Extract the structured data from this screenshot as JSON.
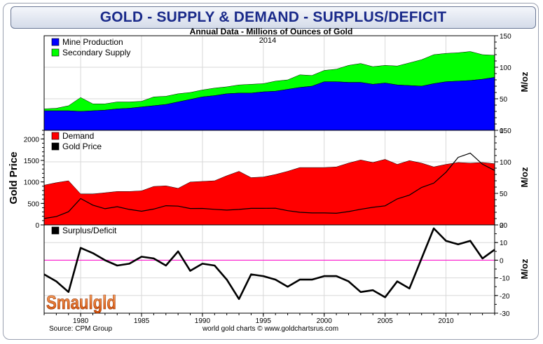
{
  "page": {
    "title": "GOLD - SUPPLY & DEMAND - SURPLUS/DEFICIT",
    "subtitle": "Annual Data - Millions of Ounces of Gold",
    "year_label": "2014",
    "source_left": "Source: CPM Group",
    "source_center": "world gold charts © www.goldchartsrus.com",
    "logo_text": "Smaulgld"
  },
  "chart_data": [
    {
      "type": "area",
      "title": "Annual Data - Millions of Ounces of Gold",
      "stacked": true,
      "x": [
        1977,
        1978,
        1979,
        1980,
        1981,
        1982,
        1983,
        1984,
        1985,
        1986,
        1987,
        1988,
        1989,
        1990,
        1991,
        1992,
        1993,
        1994,
        1995,
        1996,
        1997,
        1998,
        1999,
        2000,
        2001,
        2002,
        2003,
        2004,
        2005,
        2006,
        2007,
        2008,
        2009,
        2010,
        2011,
        2012,
        2013,
        2014
      ],
      "series": [
        {
          "name": "Mine Production",
          "color": "#0000ff",
          "values": [
            31,
            31,
            31,
            30,
            31,
            32,
            34,
            35,
            37,
            39,
            41,
            45,
            49,
            53,
            55,
            58,
            59,
            59,
            61,
            62,
            65,
            68,
            70,
            77,
            77,
            76,
            76,
            73,
            75,
            72,
            71,
            70,
            74,
            77,
            78,
            79,
            81,
            84
          ]
        },
        {
          "name": "Secondary Supply",
          "color": "#00ff00",
          "values": [
            3,
            4,
            8,
            22,
            11,
            10,
            11,
            10,
            9,
            14,
            13,
            13,
            11,
            11,
            12,
            11,
            13,
            14,
            13,
            16,
            15,
            20,
            17,
            18,
            20,
            27,
            30,
            28,
            28,
            30,
            36,
            42,
            46,
            45,
            45,
            46,
            39,
            35
          ]
        }
      ],
      "xlim": [
        1977,
        2014
      ],
      "ylim": [
        0,
        150
      ],
      "y_ticks": [
        0,
        50,
        100,
        150
      ],
      "ylabel": "M/oz",
      "legend": "top-left"
    },
    {
      "type": "area",
      "series": [
        {
          "name": "Demand",
          "color": "#ff0000",
          "axis": "right",
          "values": [
            63,
            67,
            70,
            49,
            49,
            51,
            53,
            53,
            54,
            61,
            62,
            58,
            68,
            69,
            70,
            78,
            85,
            75,
            76,
            80,
            85,
            91,
            91,
            91,
            92,
            98,
            103,
            99,
            104,
            96,
            102,
            98,
            92,
            96,
            99,
            98,
            99,
            97
          ]
        },
        {
          "name": "Gold Price",
          "color": "#000000",
          "axis": "left",
          "type": "line",
          "values": [
            148,
            194,
            306,
            612,
            460,
            376,
            424,
            360,
            317,
            368,
            447,
            437,
            381,
            383,
            362,
            344,
            360,
            384,
            384,
            388,
            331,
            294,
            279,
            279,
            271,
            310,
            363,
            409,
            444,
            604,
            695,
            872,
            972,
            1224,
            1571,
            1669,
            1411,
            1266
          ]
        }
      ],
      "xlim": [
        1977,
        2014
      ],
      "ylim_left": [
        0,
        2200
      ],
      "left_ticks": [
        0,
        500,
        1000,
        1500,
        2000
      ],
      "ylabel_left": "Gold Price",
      "ylim_right": [
        0,
        150
      ],
      "right_ticks": [
        0,
        50,
        100,
        150
      ],
      "ylabel_right": "M/oz",
      "legend": "top-left"
    },
    {
      "type": "line",
      "series": [
        {
          "name": "Surplus/Deficit",
          "color": "#000000",
          "values": [
            -8,
            -12,
            -18,
            7,
            4,
            0,
            -3,
            -2,
            2,
            1,
            -3,
            5,
            -6,
            -2,
            -3,
            -11,
            -22,
            -8,
            -9,
            -11,
            -15,
            -11,
            -11,
            -9,
            -9,
            -12,
            -18,
            -17,
            -21,
            -12,
            -16,
            1,
            18,
            11,
            9,
            11,
            1,
            6
          ]
        }
      ],
      "xlim": [
        1977,
        2014
      ],
      "ylim": [
        -30,
        20
      ],
      "y_ticks": [
        -30,
        -20,
        -10,
        0,
        10,
        20
      ],
      "zero_line_color": "#ff00cc",
      "ylabel": "M/oz",
      "legend": "top-left"
    }
  ],
  "x_axis": {
    "ticks": [
      1980,
      1985,
      1990,
      1995,
      2000,
      2005,
      2010
    ]
  }
}
